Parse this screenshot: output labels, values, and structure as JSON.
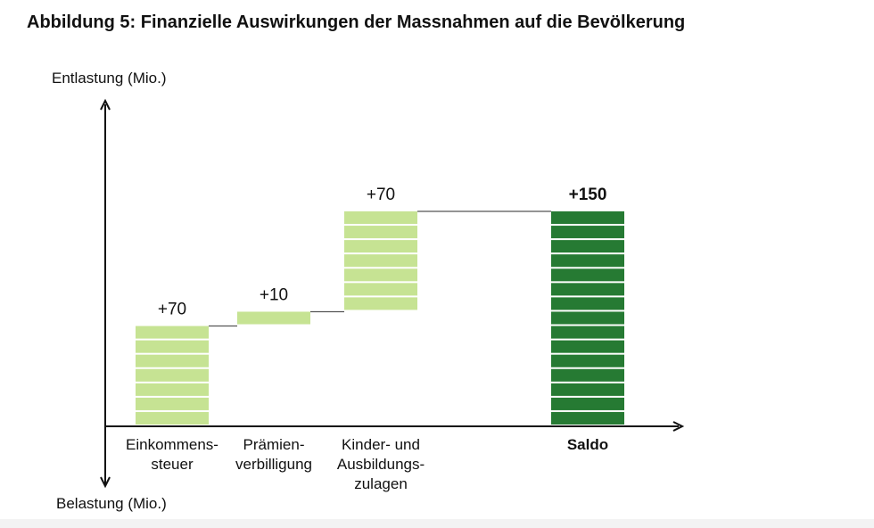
{
  "title": "Abbildung 5: Finanzielle Auswirkungen der Massnahmen auf die Bevölkerung",
  "colors": {
    "light": "#c6e393",
    "dark": "#267a33",
    "axis": "#111111",
    "connector": "#555555"
  },
  "chart_data": {
    "type": "bar",
    "subtype": "waterfall",
    "y_axis_label_top": "Entlastung (Mio.)",
    "y_axis_label_bottom": "Belastung (Mio.)",
    "ylim": [
      0,
      150
    ],
    "grid": false,
    "legend": "none",
    "categories": [
      [
        "Einkommens-",
        "steuer"
      ],
      [
        "Prämien-",
        "verbilligung"
      ],
      [
        "Kinder- und",
        "Ausbildungs-",
        "zulagen"
      ],
      [
        "Saldo"
      ]
    ],
    "values": [
      70,
      10,
      70,
      150
    ],
    "labels": [
      "+70",
      "+10",
      "+70",
      "+150"
    ],
    "is_total": [
      false,
      false,
      false,
      true
    ]
  }
}
